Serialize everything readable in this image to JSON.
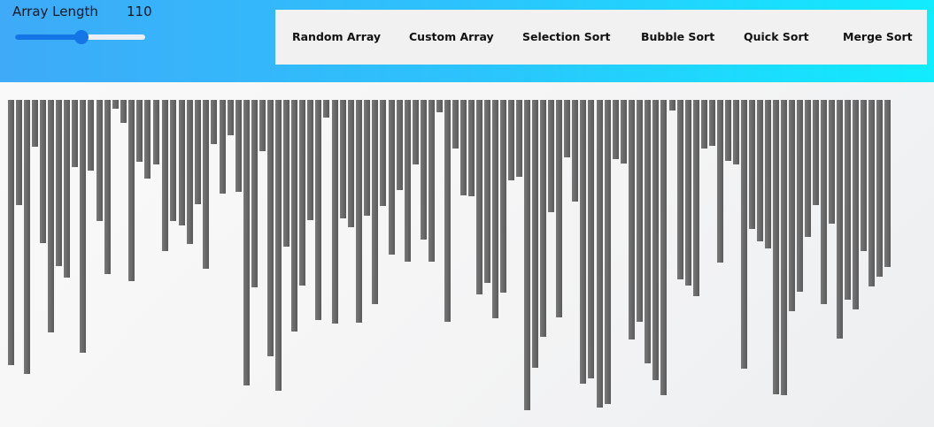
{
  "controls": {
    "array_length_label": "Array Length",
    "array_length_value": "110",
    "slider_fraction": 0.51,
    "slider_color": "#1375e6"
  },
  "toolbar": {
    "buttons": [
      {
        "id": "random-array",
        "label": "Random Array"
      },
      {
        "id": "custom-array",
        "label": "Custom Array"
      },
      {
        "id": "selection-sort",
        "label": "Selection Sort"
      },
      {
        "id": "bubble-sort",
        "label": "Bubble Sort"
      },
      {
        "id": "quick-sort",
        "label": "Quick Sort"
      },
      {
        "id": "merge-sort",
        "label": "Merge Sort"
      }
    ]
  },
  "array": {
    "bar_color": "#6a6a6a",
    "values": [
      300,
      119,
      310,
      53,
      162,
      263,
      188,
      201,
      76,
      286,
      80,
      137,
      197,
      10,
      26,
      205,
      70,
      89,
      73,
      171,
      137,
      142,
      163,
      118,
      191,
      50,
      106,
      40,
      104,
      323,
      212,
      58,
      290,
      329,
      166,
      262,
      210,
      136,
      249,
      20,
      253,
      134,
      144,
      252,
      131,
      231,
      120,
      175,
      102,
      183,
      73,
      158,
      183,
      14,
      251,
      55,
      108,
      109,
      220,
      207,
      247,
      218,
      91,
      87,
      351,
      303,
      268,
      127,
      246,
      65,
      115,
      321,
      315,
      348,
      344,
      67,
      72,
      271,
      251,
      298,
      317,
      334,
      12,
      203,
      210,
      222,
      55,
      52,
      184,
      69,
      73,
      304,
      146,
      160,
      168,
      333,
      334,
      239,
      217,
      155,
      119,
      231,
      140,
      270,
      226,
      237,
      171,
      211,
      200,
      189
    ],
    "gaps_before": [
      11,
      18,
      19,
      21,
      26,
      40,
      47,
      73,
      82
    ]
  }
}
